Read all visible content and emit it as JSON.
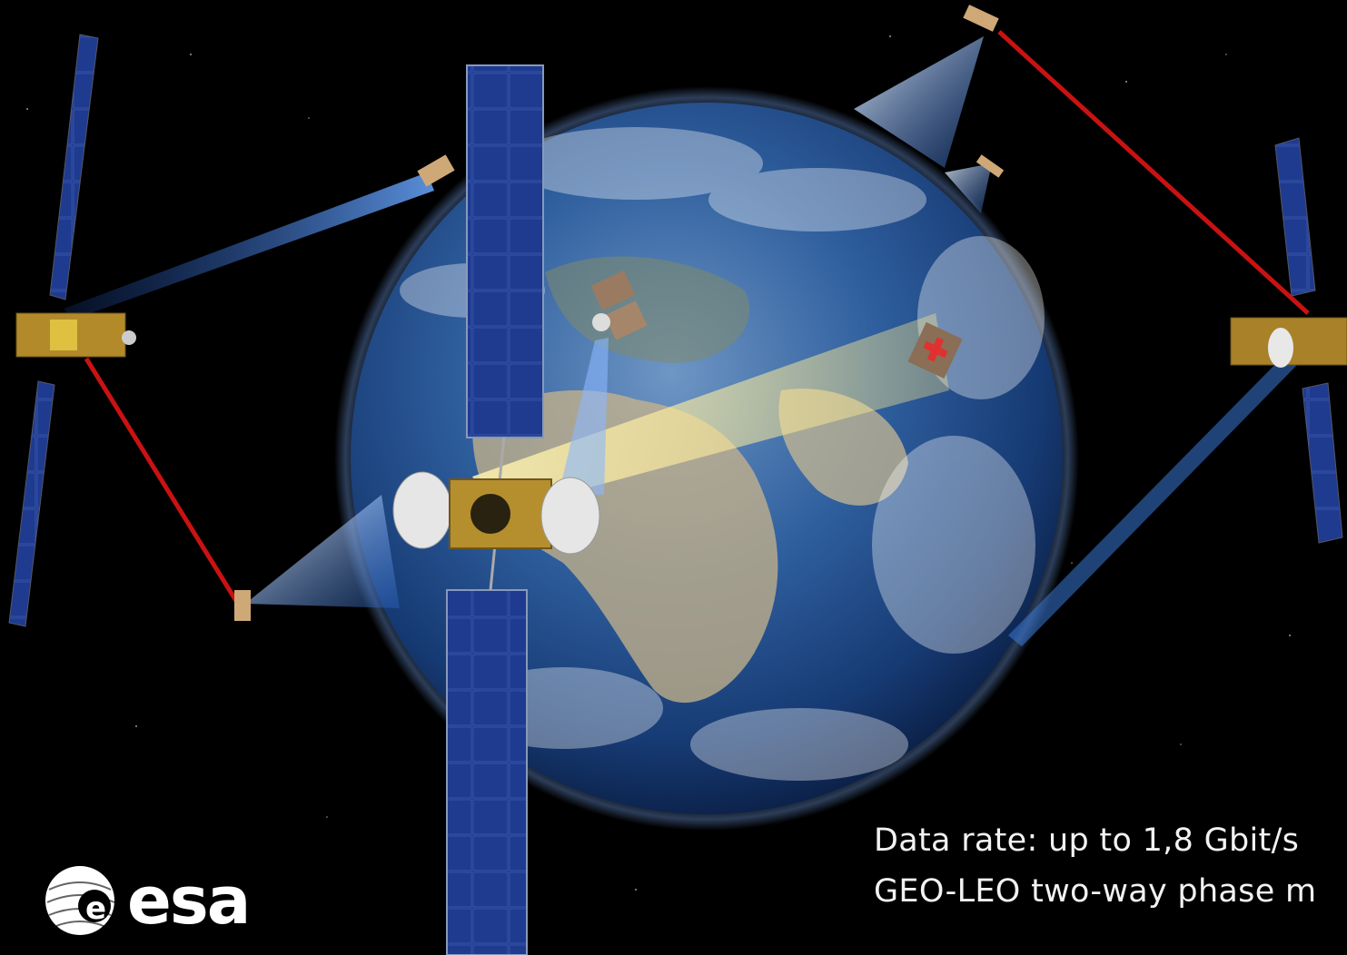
{
  "caption": {
    "line1": "Data rate: up to 1,8 Gbit/s",
    "line2": "GEO-LEO  two-way phase m"
  },
  "logo": {
    "text": "esa"
  },
  "colors": {
    "space": "#000000",
    "earth_ocean": "#1f4f8f",
    "laser_link": "#e01515",
    "ka_beam": "#3a7ad8",
    "solar_panel": "#1d3a8c",
    "caption_text": "#f2f2f2"
  }
}
